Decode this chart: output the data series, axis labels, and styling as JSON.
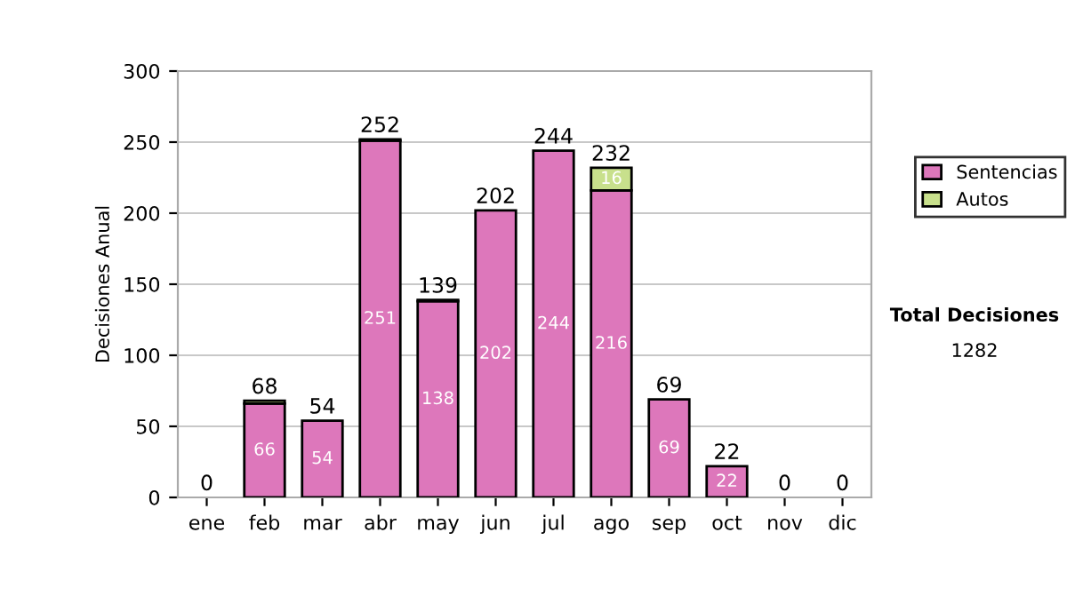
{
  "chart_data": {
    "type": "bar",
    "stacked": true,
    "ylabel": "Decisiones Anual",
    "categories": [
      "ene",
      "feb",
      "mar",
      "abr",
      "may",
      "jun",
      "jul",
      "ago",
      "sep",
      "oct",
      "nov",
      "dic"
    ],
    "series": [
      {
        "name": "Sentencias",
        "color": "#dd77bb",
        "values": [
          0,
          66,
          54,
          251,
          138,
          202,
          244,
          216,
          69,
          22,
          0,
          0
        ],
        "value_labels": [
          null,
          "66",
          "54",
          "251",
          "138",
          "202",
          "244",
          "216",
          "69",
          "22",
          null,
          null
        ]
      },
      {
        "name": "Autos",
        "color": "#c8e08c",
        "values": [
          0,
          2,
          0,
          1,
          1,
          0,
          0,
          16,
          0,
          0,
          0,
          0
        ],
        "value_labels": [
          null,
          null,
          null,
          null,
          null,
          null,
          null,
          "16",
          null,
          null,
          null,
          null
        ]
      }
    ],
    "totals": [
      "0",
      "68",
      "54",
      "252",
      "139",
      "202",
      "244",
      "232",
      "69",
      "22",
      "0",
      "0"
    ],
    "ylim": [
      0,
      300
    ],
    "yticks": [
      0,
      50,
      100,
      150,
      200,
      250,
      300
    ],
    "grid": "y",
    "legend": "right",
    "annotations": [
      "Total Decisiones",
      "1282"
    ]
  }
}
